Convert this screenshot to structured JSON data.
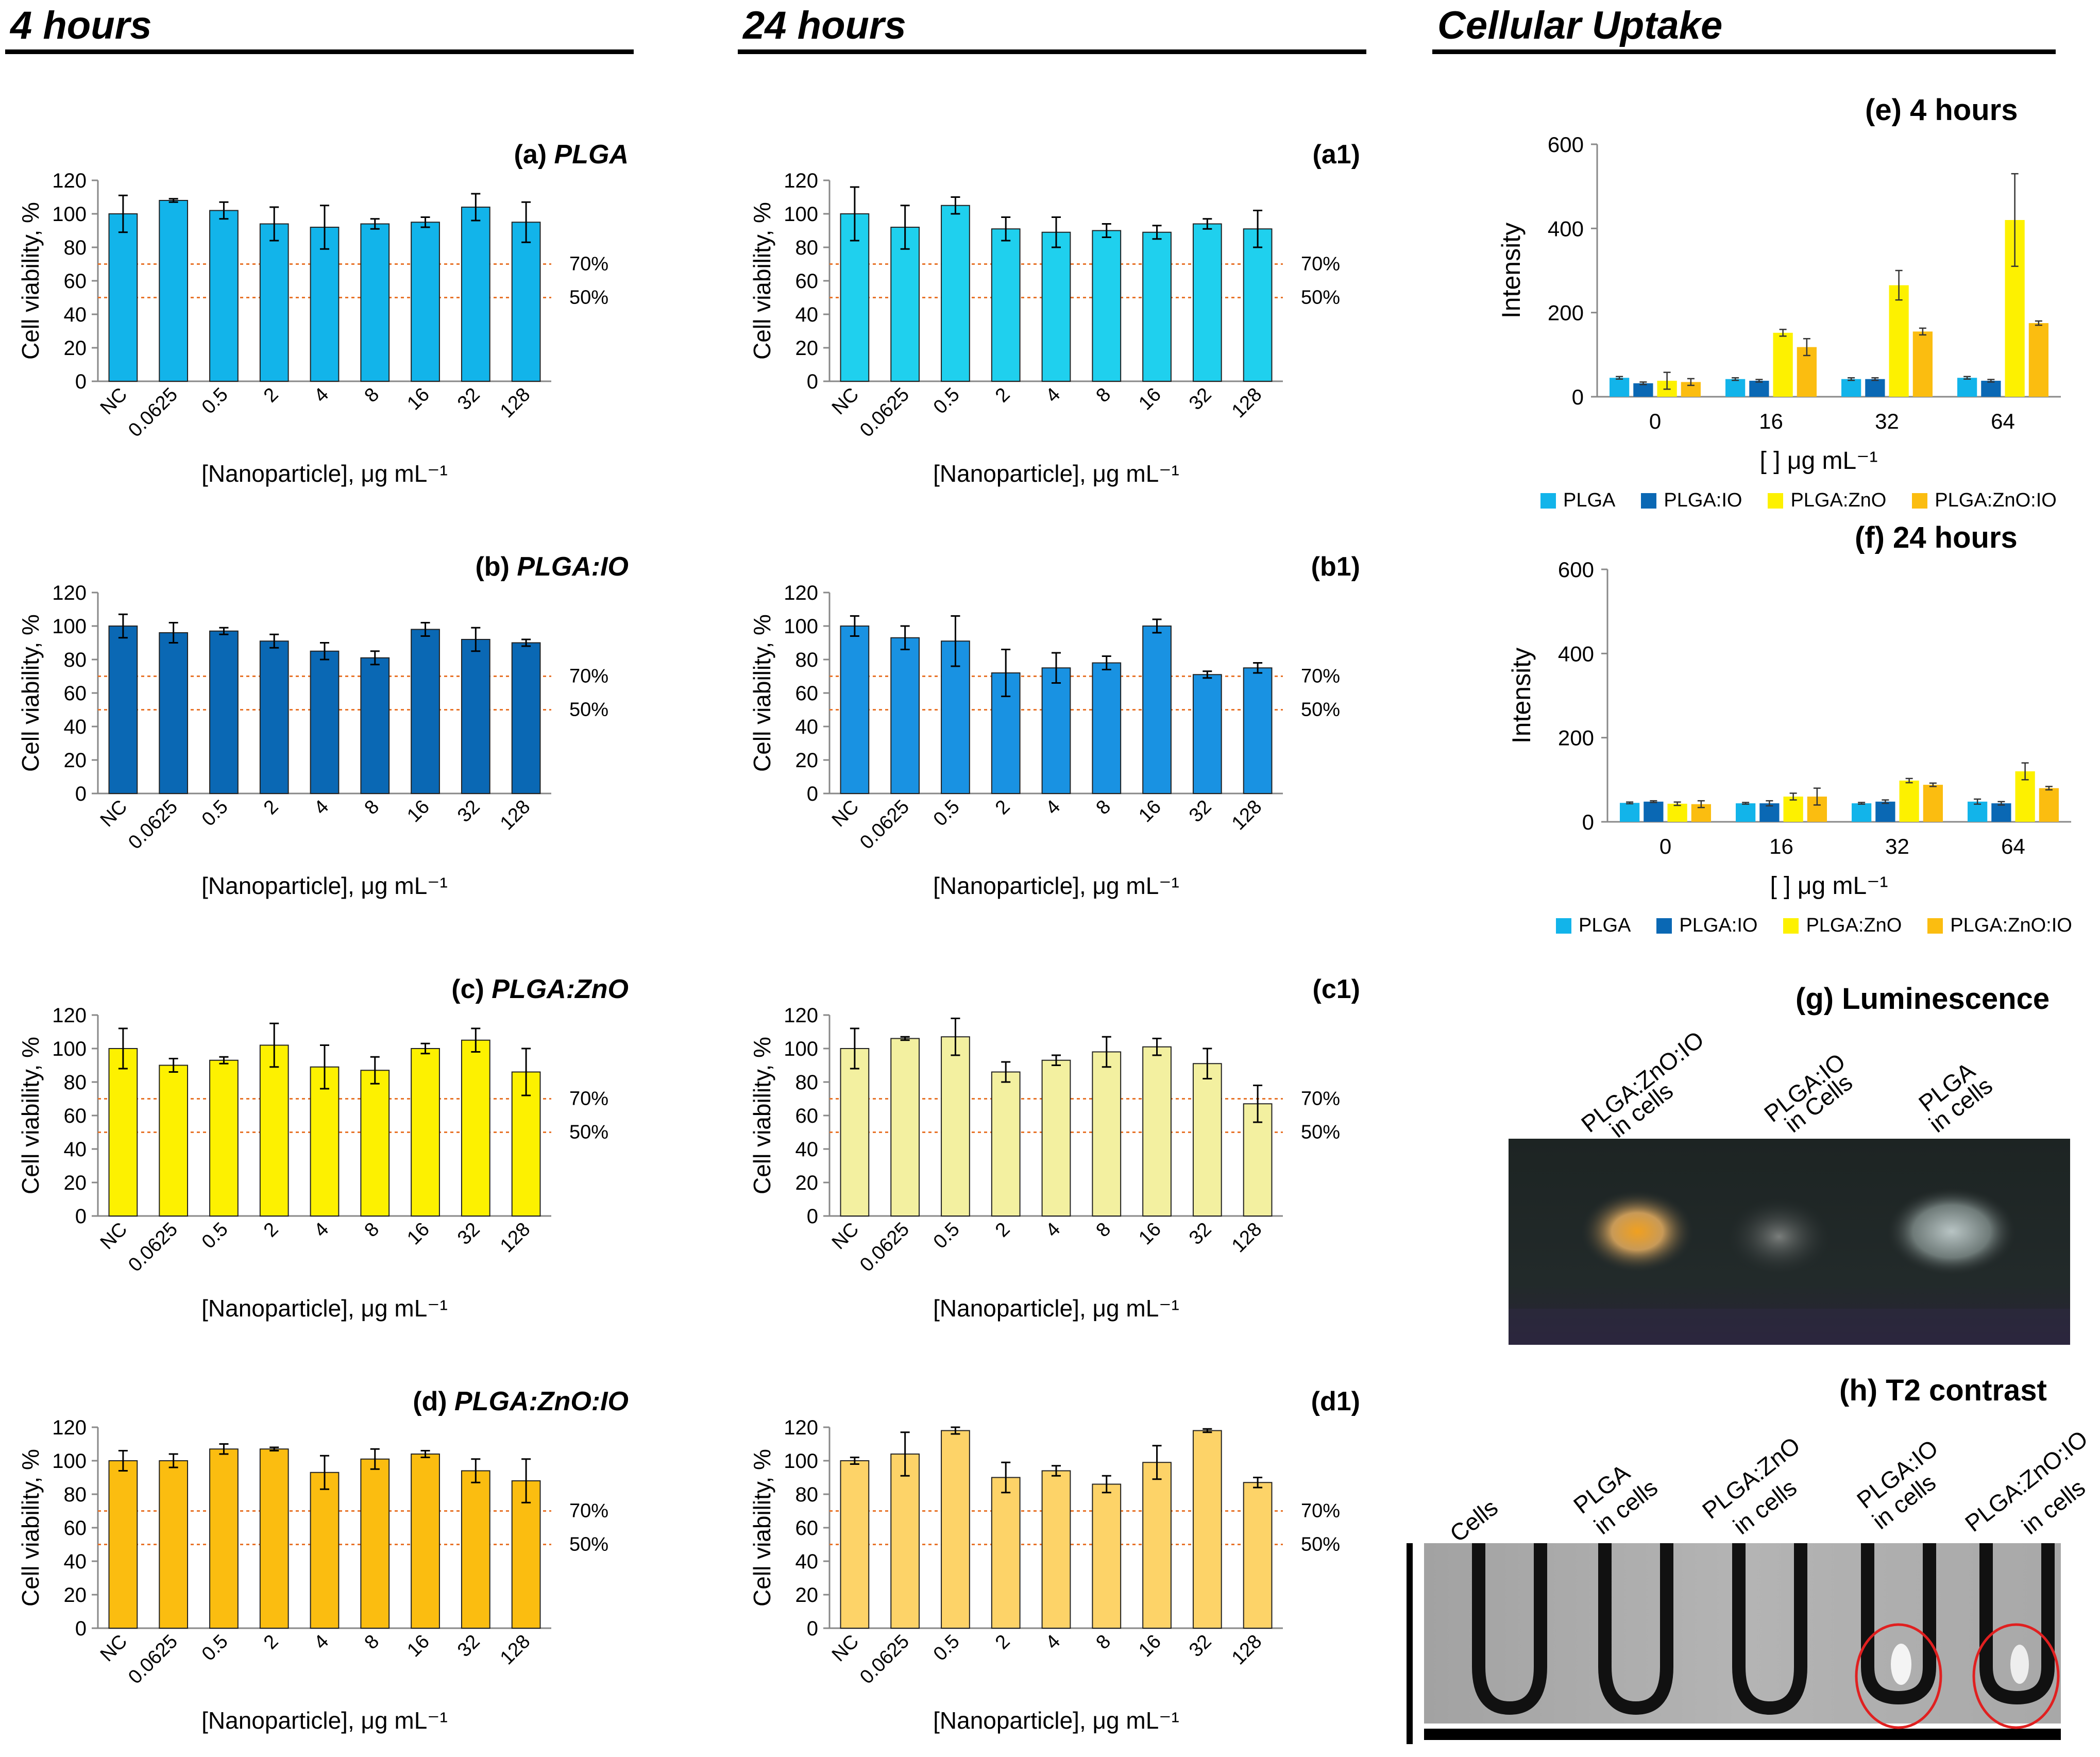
{
  "sections": {
    "four_hours": "4 hours",
    "twenty_four_hours": "24 hours",
    "cellular_uptake": "Cellular Uptake"
  },
  "viability_common": {
    "ylabel": "Cell viability, %",
    "xlabel": "[Nanoparticle], μg mL⁻¹",
    "categories": [
      "NC",
      "0.0625",
      "0.5",
      "2",
      "4",
      "8",
      "16",
      "32",
      "128"
    ],
    "ref_70": "70%",
    "ref_50": "50%",
    "yticks": [
      "0",
      "20",
      "40",
      "60",
      "80",
      "100",
      "120"
    ]
  },
  "panels": [
    {
      "id": "a",
      "label_prefix": "(a) ",
      "label_name": "PLGA",
      "color": "#12b4ea"
    },
    {
      "id": "a1",
      "label_prefix": "(a1)",
      "label_name": "",
      "color": "#1fd0ee"
    },
    {
      "id": "b",
      "label_prefix": "(b) ",
      "label_name": "PLGA:IO",
      "color": "#0a68b4"
    },
    {
      "id": "b1",
      "label_prefix": "(b1)",
      "label_name": "",
      "color": "#1992e2"
    },
    {
      "id": "c",
      "label_prefix": "(c) ",
      "label_name": "PLGA:ZnO",
      "color": "#fdf100"
    },
    {
      "id": "c1",
      "label_prefix": "(c1)",
      "label_name": "",
      "color": "#f3f0a0"
    },
    {
      "id": "d",
      "label_prefix": "(d) ",
      "label_name": "PLGA:ZnO:IO",
      "color": "#fbbd10"
    },
    {
      "id": "d1",
      "label_prefix": "(d1)",
      "label_name": "",
      "color": "#fdd368"
    }
  ],
  "chart_data": [
    {
      "id": "a",
      "type": "bar",
      "title": "(a) PLGA",
      "ylabel": "Cell viability, %",
      "xlabel": "[Nanoparticle], μg mL⁻¹",
      "categories": [
        "NC",
        "0.0625",
        "0.5",
        "2",
        "4",
        "8",
        "16",
        "32",
        "128"
      ],
      "values": [
        100,
        108,
        102,
        94,
        92,
        94,
        95,
        104,
        95
      ],
      "errors": [
        11,
        1,
        5,
        10,
        13,
        3,
        3,
        8,
        12
      ],
      "ylim": [
        0,
        120
      ],
      "reference_lines": [
        70,
        50
      ]
    },
    {
      "id": "a1",
      "type": "bar",
      "title": "(a1)",
      "ylabel": "Cell viability, %",
      "xlabel": "[Nanoparticle], μg mL⁻¹",
      "categories": [
        "NC",
        "0.0625",
        "0.5",
        "2",
        "4",
        "8",
        "16",
        "32",
        "128"
      ],
      "values": [
        100,
        92,
        105,
        91,
        89,
        90,
        89,
        94,
        91
      ],
      "errors": [
        16,
        13,
        5,
        7,
        9,
        4,
        4,
        3,
        11
      ],
      "ylim": [
        0,
        120
      ],
      "reference_lines": [
        70,
        50
      ]
    },
    {
      "id": "b",
      "type": "bar",
      "title": "(b) PLGA:IO",
      "ylabel": "Cell viability, %",
      "xlabel": "[Nanoparticle], μg mL⁻¹",
      "categories": [
        "NC",
        "0.0625",
        "0.5",
        "2",
        "4",
        "8",
        "16",
        "32",
        "128"
      ],
      "values": [
        100,
        96,
        97,
        91,
        85,
        81,
        98,
        92,
        90
      ],
      "errors": [
        7,
        6,
        2,
        4,
        5,
        4,
        4,
        7,
        2
      ],
      "ylim": [
        0,
        120
      ],
      "reference_lines": [
        70,
        50
      ]
    },
    {
      "id": "b1",
      "type": "bar",
      "title": "(b1)",
      "ylabel": "Cell viability, %",
      "xlabel": "[Nanoparticle], μg mL⁻¹",
      "categories": [
        "NC",
        "0.0625",
        "0.5",
        "2",
        "4",
        "8",
        "16",
        "32",
        "128"
      ],
      "values": [
        100,
        93,
        91,
        72,
        75,
        78,
        100,
        71,
        75
      ],
      "errors": [
        6,
        7,
        15,
        14,
        9,
        4,
        4,
        2,
        3
      ],
      "ylim": [
        0,
        120
      ],
      "reference_lines": [
        70,
        50
      ]
    },
    {
      "id": "c",
      "type": "bar",
      "title": "(c) PLGA:ZnO",
      "ylabel": "Cell viability, %",
      "xlabel": "[Nanoparticle], μg mL⁻¹",
      "categories": [
        "NC",
        "0.0625",
        "0.5",
        "2",
        "4",
        "8",
        "16",
        "32",
        "128"
      ],
      "values": [
        100,
        90,
        93,
        102,
        89,
        87,
        100,
        105,
        86
      ],
      "errors": [
        12,
        4,
        2,
        13,
        13,
        8,
        3,
        7,
        14
      ],
      "ylim": [
        0,
        120
      ],
      "reference_lines": [
        70,
        50
      ]
    },
    {
      "id": "c1",
      "type": "bar",
      "title": "(c1)",
      "ylabel": "Cell viability, %",
      "xlabel": "[Nanoparticle], μg mL⁻¹",
      "categories": [
        "NC",
        "0.0625",
        "0.5",
        "2",
        "4",
        "8",
        "16",
        "32",
        "128"
      ],
      "values": [
        100,
        106,
        107,
        86,
        93,
        98,
        101,
        91,
        67
      ],
      "errors": [
        12,
        1,
        11,
        6,
        3,
        9,
        5,
        9,
        11
      ],
      "ylim": [
        0,
        120
      ],
      "reference_lines": [
        70,
        50
      ]
    },
    {
      "id": "d",
      "type": "bar",
      "title": "(d) PLGA:ZnO:IO",
      "ylabel": "Cell viability, %",
      "xlabel": "[Nanoparticle], μg mL⁻¹",
      "categories": [
        "NC",
        "0.0625",
        "0.5",
        "2",
        "4",
        "8",
        "16",
        "32",
        "128"
      ],
      "values": [
        100,
        100,
        107,
        107,
        93,
        101,
        104,
        94,
        88
      ],
      "errors": [
        6,
        4,
        3,
        1,
        10,
        6,
        2,
        7,
        13
      ],
      "ylim": [
        0,
        120
      ],
      "reference_lines": [
        70,
        50
      ]
    },
    {
      "id": "d1",
      "type": "bar",
      "title": "(d1)",
      "ylabel": "Cell viability, %",
      "xlabel": "[Nanoparticle], μg mL⁻¹",
      "categories": [
        "NC",
        "0.0625",
        "0.5",
        "2",
        "4",
        "8",
        "16",
        "32",
        "128"
      ],
      "values": [
        100,
        104,
        118,
        90,
        94,
        86,
        99,
        118,
        87
      ],
      "errors": [
        2,
        13,
        2,
        9,
        3,
        5,
        10,
        1,
        3
      ],
      "ylim": [
        0,
        120
      ],
      "reference_lines": [
        70,
        50
      ]
    },
    {
      "id": "e",
      "type": "bar",
      "title": "(e) 4 hours",
      "ylabel": "Intensity",
      "xlabel": "[  ] μg mL⁻¹",
      "categories": [
        "0",
        "16",
        "32",
        "64"
      ],
      "ylim": [
        0,
        600
      ],
      "series": [
        {
          "name": "PLGA",
          "values": [
            45,
            42,
            42,
            45
          ],
          "errors": [
            3,
            3,
            3,
            3
          ],
          "color": "#12b4ea"
        },
        {
          "name": "PLGA:IO",
          "values": [
            32,
            38,
            42,
            38
          ],
          "errors": [
            3,
            3,
            3,
            3
          ],
          "color": "#0a68b4"
        },
        {
          "name": "PLGA:ZnO",
          "values": [
            38,
            152,
            265,
            420
          ],
          "errors": [
            20,
            8,
            35,
            110
          ],
          "color": "#fdf100"
        },
        {
          "name": "PLGA:ZnO:IO",
          "values": [
            35,
            118,
            155,
            175
          ],
          "errors": [
            8,
            20,
            8,
            5
          ],
          "color": "#fbbd10"
        }
      ]
    },
    {
      "id": "f",
      "type": "bar",
      "title": "(f) 24 hours",
      "ylabel": "Intensity",
      "xlabel": "[  ] μg mL⁻¹",
      "categories": [
        "0",
        "16",
        "32",
        "64"
      ],
      "ylim": [
        0,
        600
      ],
      "series": [
        {
          "name": "PLGA",
          "values": [
            45,
            44,
            44,
            48
          ],
          "errors": [
            2,
            2,
            2,
            6
          ],
          "color": "#12b4ea"
        },
        {
          "name": "PLGA:IO",
          "values": [
            48,
            44,
            48,
            44
          ],
          "errors": [
            2,
            6,
            4,
            4
          ],
          "color": "#0a68b4"
        },
        {
          "name": "PLGA:ZnO",
          "values": [
            43,
            60,
            98,
            120
          ],
          "errors": [
            4,
            8,
            5,
            20
          ],
          "color": "#fdf100"
        },
        {
          "name": "PLGA:ZnO:IO",
          "values": [
            42,
            60,
            88,
            80
          ],
          "errors": [
            8,
            20,
            4,
            4
          ],
          "color": "#fbbd10"
        }
      ]
    }
  ],
  "uptake": {
    "e_title": "(e) 4 hours",
    "f_title": "(f) 24 hours",
    "ylabel": "Intensity",
    "xlabel": "[  ] μg mL⁻¹",
    "yticks": [
      "0",
      "200",
      "400",
      "600"
    ],
    "legend": [
      "PLGA",
      "PLGA:IO",
      "PLGA:ZnO",
      "PLGA:ZnO:IO"
    ]
  },
  "luminescence": {
    "title": "(g) Luminescence",
    "labels": [
      "PLGA:ZnO:IO\nin cells",
      "PLGA:IO\nin Cells",
      "PLGA\nin cells"
    ]
  },
  "t2": {
    "title": "(h) T2 contrast",
    "labels": [
      "Cells",
      "PLGA\nin cells",
      "PLGA:ZnO\nin cells",
      "PLGA:IO\nin cells",
      "PLGA:ZnO:IO\nin cells"
    ]
  }
}
